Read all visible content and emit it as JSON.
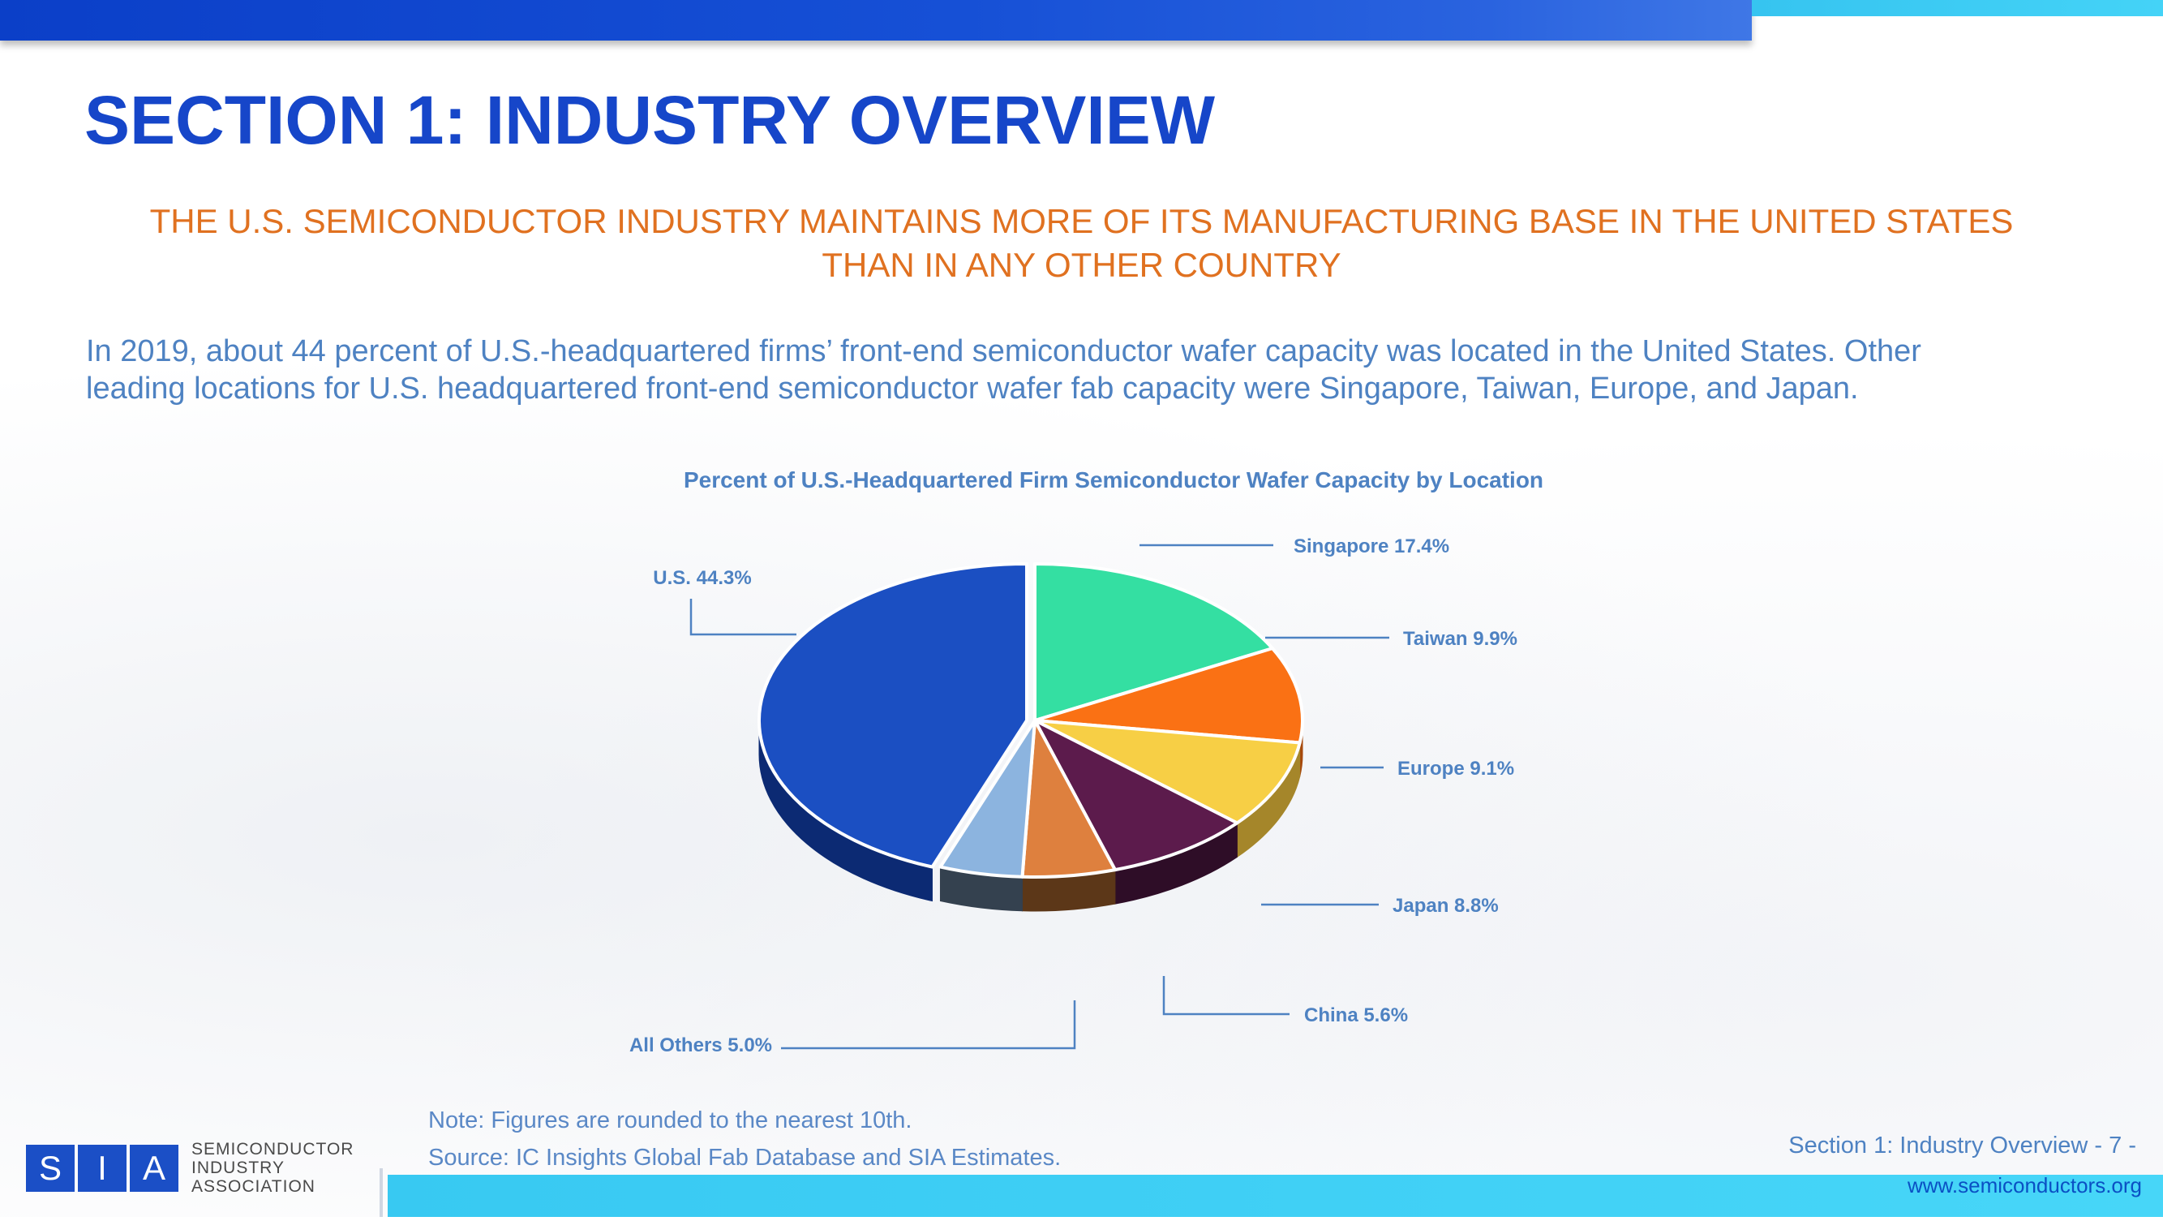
{
  "title": "SECTION 1: INDUSTRY OVERVIEW",
  "subtitle_line1": "THE U.S. SEMICONDUCTOR INDUSTRY MAINTAINS MORE OF ITS MANUFACTURING BASE IN THE UNITED STATES",
  "subtitle_line2": "THAN IN ANY OTHER COUNTRY",
  "body_line1": "In 2019, about 44 percent of U.S.-headquartered firms’ front-end semiconductor wafer capacity was located in the United States. Other",
  "body_line2": "leading locations for U.S. headquartered front-end semiconductor wafer fab capacity were Singapore, Taiwan, Europe, and Japan.",
  "chart_data": {
    "type": "pie",
    "title": "Percent of U.S.-Headquartered Firm Semiconductor Wafer Capacity by Location",
    "unit": "%",
    "slices": [
      {
        "label": "Singapore",
        "value": 17.4,
        "color": "#34dfa2",
        "side": "#1e8f67",
        "text": "Singapore 17.4%"
      },
      {
        "label": "Taiwan",
        "value": 9.9,
        "color": "#fa7114",
        "side": "#a6490c",
        "text": "Taiwan 9.9%"
      },
      {
        "label": "Europe",
        "value": 9.1,
        "color": "#f7cf45",
        "side": "#a5862a",
        "text": "Europe 9.1%"
      },
      {
        "label": "Japan",
        "value": 8.8,
        "color": "#5c1b4c",
        "side": "#2e0d27",
        "text": "Japan 8.8%"
      },
      {
        "label": "China",
        "value": 5.6,
        "color": "#de803e",
        "side": "#5c3718",
        "text": "China 5.6%"
      },
      {
        "label": "All Others",
        "value": 5.0,
        "color": "#8cb4df",
        "side": "#34414f",
        "text": "All Others 5.0%"
      },
      {
        "label": "U.S.",
        "value": 44.3,
        "color": "#1b4fc2",
        "side": "#0c2a73",
        "text": "U.S. 44.3%"
      }
    ]
  },
  "note": "Note: Figures are rounded to the nearest 10th.",
  "source": "Source: IC Insights Global Fab Database and SIA Estimates.",
  "footer": {
    "page_label": "Section 1: Industry Overview - 7 -",
    "website": "www.semiconductors.org"
  },
  "logo": {
    "letters": [
      "S",
      "I",
      "A"
    ],
    "line1": "SEMICONDUCTOR",
    "line2": "INDUSTRY",
    "line3": "ASSOCIATION"
  },
  "colors": {
    "title": "#1646c9",
    "subtitle": "#e07120",
    "body": "#4e82c2",
    "chart_label": "#4e82c2"
  }
}
